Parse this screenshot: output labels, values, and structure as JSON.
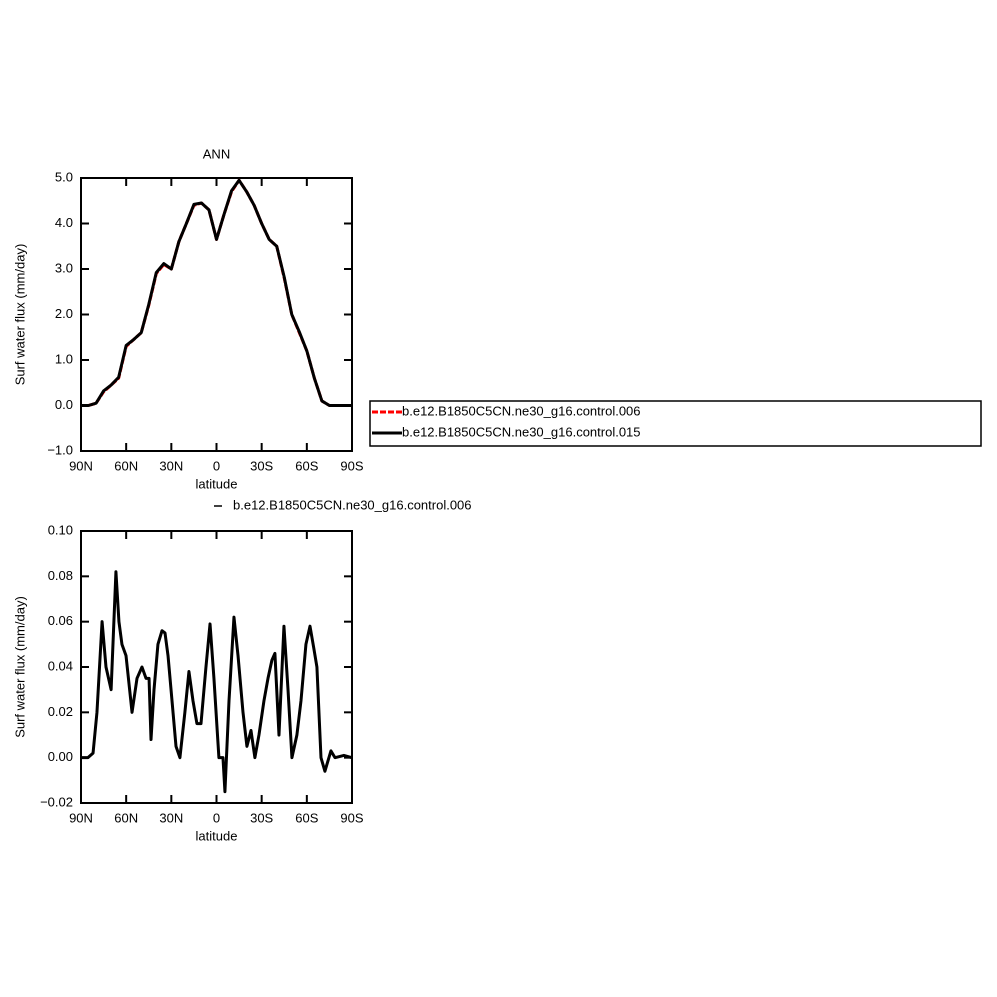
{
  "chart_data": [
    {
      "type": "line",
      "title": "ANN",
      "xlabel": "latitude",
      "ylabel": "Surf water flux (mm/day)",
      "xlim": [
        90,
        -90
      ],
      "xticks": [
        {
          "value": 90,
          "label": "90N"
        },
        {
          "value": 60,
          "label": "60N"
        },
        {
          "value": 30,
          "label": "30N"
        },
        0,
        {
          "value": -30,
          "label": "30S"
        },
        {
          "value": -60,
          "label": "60S"
        },
        {
          "value": -90,
          "label": "90S"
        }
      ],
      "ylim": [
        -1,
        5
      ],
      "yticks": [
        {
          "value": -1,
          "label": "−1.0"
        },
        {
          "value": 0,
          "label": "0.0"
        },
        {
          "value": 1,
          "label": "1.0"
        },
        {
          "value": 2,
          "label": "2.0"
        },
        {
          "value": 3,
          "label": "3.0"
        },
        {
          "value": 4,
          "label": "4.0"
        },
        {
          "value": 5,
          "label": "5.0"
        }
      ],
      "x": [
        90,
        85,
        80,
        75,
        70,
        65,
        60,
        55,
        50,
        45,
        40,
        35,
        30,
        25,
        20,
        15,
        10,
        5,
        0,
        -5,
        -10,
        -15,
        -20,
        -25,
        -30,
        -35,
        -40,
        -45,
        -50,
        -55,
        -60,
        -65,
        -70,
        -75,
        -80,
        -85,
        -90
      ],
      "legend": "right",
      "series": [
        {
          "name": "b.e12.B1850C5CN.ne30_g16.control.006",
          "color": "#ff0000",
          "dashed": true,
          "values": [
            0.0,
            0.0,
            0.05,
            0.3,
            0.45,
            0.6,
            1.3,
            1.45,
            1.6,
            2.2,
            2.9,
            3.1,
            3.0,
            3.6,
            4.0,
            4.4,
            4.45,
            4.3,
            3.65,
            4.2,
            4.7,
            4.95,
            4.7,
            4.4,
            4.0,
            3.65,
            3.5,
            2.8,
            2.0,
            1.6,
            1.2,
            0.6,
            0.1,
            0.0,
            0.0,
            0.0,
            0.0
          ]
        },
        {
          "name": "b.e12.B1850C5CN.ne30_g16.control.015",
          "color": "#000000",
          "dashed": false,
          "values": [
            0.0,
            0.0,
            0.05,
            0.32,
            0.45,
            0.62,
            1.32,
            1.45,
            1.6,
            2.22,
            2.92,
            3.12,
            3.0,
            3.6,
            4.0,
            4.42,
            4.45,
            4.3,
            3.65,
            4.2,
            4.72,
            4.95,
            4.7,
            4.4,
            4.0,
            3.65,
            3.5,
            2.82,
            2.0,
            1.62,
            1.2,
            0.6,
            0.1,
            0.0,
            0.0,
            0.0,
            0.0
          ]
        }
      ]
    },
    {
      "type": "line",
      "xlabel": "latitude",
      "ylabel": "Surf water flux (mm/day)",
      "xlim": [
        90,
        -90
      ],
      "xticks": [
        {
          "value": 90,
          "label": "90N"
        },
        {
          "value": 60,
          "label": "60N"
        },
        {
          "value": 30,
          "label": "30N"
        },
        0,
        {
          "value": -30,
          "label": "30S"
        },
        {
          "value": -60,
          "label": "60S"
        },
        {
          "value": -90,
          "label": "90S"
        }
      ],
      "ylim": [
        -0.02,
        0.1
      ],
      "yticks": [
        {
          "value": -0.02,
          "label": "−0.02"
        },
        {
          "value": 0,
          "label": "0.00"
        },
        {
          "value": 0.02,
          "label": "0.02"
        },
        {
          "value": 0.04,
          "label": "0.04"
        },
        {
          "value": 0.06,
          "label": "0.06"
        },
        {
          "value": 0.08,
          "label": "0.08"
        },
        {
          "value": 0.1,
          "label": "0.10"
        }
      ],
      "x": [
        90,
        85.4,
        82,
        79.4,
        76,
        73.4,
        70,
        66.8,
        64.8,
        62.8,
        60.1,
        56.1,
        52.8,
        49.5,
        46.8,
        44.8,
        43.5,
        41.5,
        38.9,
        36.2,
        34.2,
        32.2,
        30.2,
        26.9,
        24.3,
        21,
        18.3,
        15.6,
        13,
        10.3,
        7,
        4.3,
        1.7,
        -1.6,
        -4.3,
        -5.6,
        -8.3,
        -11.6,
        -14.3,
        -17.6,
        -20.2,
        -22.9,
        -25.5,
        -28.2,
        -31.5,
        -34.2,
        -36.8,
        -38.8,
        -41.5,
        -44.8,
        -47.5,
        -50.1,
        -53.4,
        -56.1,
        -59.4,
        -62.1,
        -64.7,
        -66.7,
        -69.4,
        -72,
        -76,
        -78.7,
        -84.6,
        -90
      ],
      "legend": "top",
      "series": [
        {
          "name": "b.e12.B1850C5CN.ne30_g16.control.006",
          "color": "#000000",
          "dashed": false,
          "values": [
            0.0,
            0.0,
            0.002,
            0.02,
            0.06,
            0.04,
            0.03,
            0.082,
            0.06,
            0.05,
            0.045,
            0.02,
            0.035,
            0.04,
            0.035,
            0.035,
            0.008,
            0.03,
            0.05,
            0.056,
            0.055,
            0.045,
            0.03,
            0.005,
            0.0,
            0.02,
            0.038,
            0.025,
            0.015,
            0.015,
            0.04,
            0.059,
            0.035,
            0.0,
            0.0,
            -0.015,
            0.025,
            0.062,
            0.045,
            0.02,
            0.005,
            0.012,
            0.0,
            0.01,
            0.025,
            0.035,
            0.043,
            0.046,
            0.01,
            0.058,
            0.03,
            0.0,
            0.01,
            0.025,
            0.05,
            0.058,
            0.048,
            0.04,
            0.0,
            -0.006,
            0.003,
            0.0,
            0.001,
            0.0
          ]
        }
      ]
    }
  ]
}
